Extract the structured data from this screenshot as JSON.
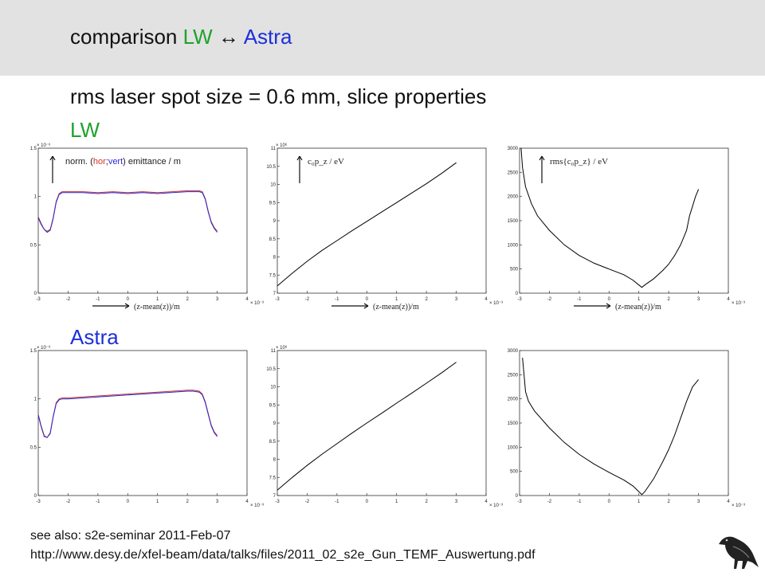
{
  "header": {
    "title_prefix": "comparison ",
    "title_lw": "LW",
    "title_arrow": " ↔ ",
    "title_astra": "Astra"
  },
  "subtitle": "rms laser spot size = 0.6 mm, slice properties",
  "sections": {
    "lw": "LW",
    "astra": "Astra"
  },
  "colors": {
    "lw": "#1fa22a",
    "astra": "#1d2fd8",
    "hor": "#d0332b",
    "vert": "#2a2ad6"
  },
  "footer": {
    "line1": "see also: s2e-seminar 2011-Feb-07",
    "line2": "http://www.desy.de/xfel-beam/data/talks/files/2011_02_s2e_Gun_TEMF_Auswertung.pdf"
  },
  "logo_icon": "crow-icon",
  "chart_data": [
    {
      "id": "lw-emittance",
      "type": "line",
      "ylabel_parts": [
        "norm. (",
        "hor",
        ";",
        "vert",
        ") emittance / m"
      ],
      "xlabel": "(z-mean(z))/m",
      "x_exponent": "× 10⁻³",
      "y_exponent": "× 10⁻⁶",
      "xlim": [
        -3,
        4
      ],
      "ylim": [
        0,
        1.5
      ],
      "xticks": [
        -3,
        -2,
        -1,
        0,
        1,
        2,
        3,
        4
      ],
      "xtick_labels": [
        "-3",
        "-2",
        "-1",
        "0",
        "1",
        "2",
        "3",
        "4"
      ],
      "yticks": [
        0,
        0.5,
        1,
        1.5
      ],
      "ytick_labels": [
        "0",
        "0.5",
        "1",
        "1.5"
      ],
      "series": [
        {
          "color": "#d0332b",
          "x": [
            -3.0,
            -2.9,
            -2.8,
            -2.7,
            -2.6,
            -2.5,
            -2.4,
            -2.3,
            -2.2,
            -2.1,
            -2.0,
            -1.5,
            -1.0,
            -0.5,
            0.0,
            0.5,
            1.0,
            1.5,
            2.0,
            2.2,
            2.4,
            2.5,
            2.6,
            2.7,
            2.8,
            2.9,
            3.0
          ],
          "y": [
            0.79,
            0.72,
            0.66,
            0.64,
            0.66,
            0.78,
            0.95,
            1.03,
            1.05,
            1.05,
            1.05,
            1.05,
            1.04,
            1.05,
            1.04,
            1.05,
            1.04,
            1.05,
            1.06,
            1.06,
            1.06,
            1.05,
            0.98,
            0.85,
            0.74,
            0.68,
            0.64
          ]
        },
        {
          "color": "#2a2ad6",
          "x": [
            -3.0,
            -2.9,
            -2.8,
            -2.7,
            -2.6,
            -2.5,
            -2.4,
            -2.3,
            -2.2,
            -2.1,
            -2.0,
            -1.5,
            -1.0,
            -0.5,
            0.0,
            0.5,
            1.0,
            1.5,
            2.0,
            2.2,
            2.4,
            2.5,
            2.6,
            2.7,
            2.8,
            2.9,
            3.0
          ],
          "y": [
            0.78,
            0.71,
            0.66,
            0.63,
            0.65,
            0.77,
            0.94,
            1.02,
            1.04,
            1.04,
            1.04,
            1.04,
            1.03,
            1.04,
            1.03,
            1.04,
            1.03,
            1.04,
            1.05,
            1.05,
            1.05,
            1.04,
            0.97,
            0.84,
            0.73,
            0.67,
            0.63
          ]
        }
      ]
    },
    {
      "id": "lw-momentum",
      "type": "line",
      "ylabel": "c₀p_z / eV",
      "xlabel": "(z-mean(z))/m",
      "x_exponent": "× 10⁻³",
      "y_exponent": "× 10⁶",
      "xlim": [
        -3,
        4
      ],
      "ylim": [
        7,
        11
      ],
      "xticks": [
        -3,
        -2,
        -1,
        0,
        1,
        2,
        3,
        4
      ],
      "xtick_labels": [
        "-3",
        "-2",
        "-1",
        "0",
        "1",
        "2",
        "3",
        "4"
      ],
      "yticks": [
        7,
        7.5,
        8,
        8.5,
        9,
        9.5,
        10,
        10.5,
        11
      ],
      "ytick_labels": [
        "7",
        "7.5",
        "8",
        "8.5",
        "9",
        "9.5",
        "10",
        "10.5",
        "11"
      ],
      "series": [
        {
          "color": "#000000",
          "x": [
            -3.0,
            -2.5,
            -2.0,
            -1.5,
            -1.0,
            -0.5,
            0.0,
            0.5,
            1.0,
            1.5,
            2.0,
            2.5,
            3.0
          ],
          "y": [
            7.2,
            7.55,
            7.88,
            8.18,
            8.45,
            8.72,
            8.98,
            9.24,
            9.5,
            9.76,
            10.02,
            10.3,
            10.6
          ]
        }
      ]
    },
    {
      "id": "lw-energy-spread",
      "type": "line",
      "ylabel": "rms{c₀p_z} / eV",
      "xlabel": "(z-mean(z))/m",
      "x_exponent": "× 10⁻³",
      "xlim": [
        -3,
        4
      ],
      "ylim": [
        0,
        3000
      ],
      "xticks": [
        -3,
        -2,
        -1,
        0,
        1,
        2,
        3,
        4
      ],
      "xtick_labels": [
        "-3",
        "-2",
        "-1",
        "0",
        "1",
        "2",
        "3",
        "4"
      ],
      "yticks": [
        0,
        500,
        1000,
        1500,
        2000,
        2500,
        3000
      ],
      "ytick_labels": [
        "0",
        "500",
        "1000",
        "1500",
        "2000",
        "2500",
        "3000"
      ],
      "series": [
        {
          "color": "#000000",
          "x": [
            -2.95,
            -2.9,
            -2.8,
            -2.6,
            -2.4,
            -2.0,
            -1.5,
            -1.0,
            -0.5,
            0.0,
            0.5,
            0.8,
            1.0,
            1.1,
            1.2,
            1.5,
            1.8,
            2.0,
            2.2,
            2.4,
            2.6,
            2.7,
            2.8,
            2.9,
            3.0
          ],
          "y": [
            3000,
            2600,
            2200,
            1850,
            1600,
            1300,
            1000,
            780,
            620,
            500,
            380,
            270,
            170,
            120,
            170,
            300,
            470,
            600,
            780,
            1000,
            1300,
            1600,
            1800,
            2000,
            2150
          ]
        }
      ]
    },
    {
      "id": "astra-emittance",
      "type": "line",
      "x_exponent": "× 10⁻³",
      "y_exponent": "× 10⁻⁶",
      "xlim": [
        -3,
        4
      ],
      "ylim": [
        0,
        1.5
      ],
      "xticks": [
        -3,
        -2,
        -1,
        0,
        1,
        2,
        3,
        4
      ],
      "xtick_labels": [
        "-3",
        "-2",
        "-1",
        "0",
        "1",
        "2",
        "3",
        "4"
      ],
      "yticks": [
        0,
        0.5,
        1,
        1.5
      ],
      "ytick_labels": [
        "0",
        "0.5",
        "1",
        "1.5"
      ],
      "series": [
        {
          "color": "#d0332b",
          "x": [
            -3.0,
            -2.9,
            -2.8,
            -2.7,
            -2.6,
            -2.5,
            -2.4,
            -2.3,
            -2.2,
            -2.0,
            -1.5,
            -1.0,
            -0.5,
            0.0,
            0.5,
            1.0,
            1.5,
            2.0,
            2.2,
            2.4,
            2.5,
            2.6,
            2.7,
            2.8,
            2.9,
            3.0
          ],
          "y": [
            0.84,
            0.72,
            0.62,
            0.6,
            0.65,
            0.82,
            0.96,
            1.0,
            1.01,
            1.01,
            1.02,
            1.03,
            1.04,
            1.05,
            1.06,
            1.07,
            1.08,
            1.09,
            1.09,
            1.08,
            1.05,
            0.97,
            0.85,
            0.73,
            0.66,
            0.62
          ]
        },
        {
          "color": "#2a2ad6",
          "x": [
            -3.0,
            -2.9,
            -2.8,
            -2.7,
            -2.6,
            -2.5,
            -2.4,
            -2.3,
            -2.2,
            -2.0,
            -1.5,
            -1.0,
            -0.5,
            0.0,
            0.5,
            1.0,
            1.5,
            2.0,
            2.2,
            2.4,
            2.5,
            2.6,
            2.7,
            2.8,
            2.9,
            3.0
          ],
          "y": [
            0.83,
            0.71,
            0.61,
            0.6,
            0.64,
            0.81,
            0.95,
            0.99,
            1.0,
            1.0,
            1.01,
            1.02,
            1.03,
            1.04,
            1.05,
            1.06,
            1.07,
            1.08,
            1.08,
            1.07,
            1.04,
            0.96,
            0.84,
            0.72,
            0.65,
            0.61
          ]
        }
      ]
    },
    {
      "id": "astra-momentum",
      "type": "line",
      "x_exponent": "× 10⁻³",
      "y_exponent": "× 10⁶",
      "xlim": [
        -3,
        4
      ],
      "ylim": [
        7,
        11
      ],
      "xticks": [
        -3,
        -2,
        -1,
        0,
        1,
        2,
        3,
        4
      ],
      "xtick_labels": [
        "-3",
        "-2",
        "-1",
        "0",
        "1",
        "2",
        "3",
        "4"
      ],
      "yticks": [
        7,
        7.5,
        8,
        8.5,
        9,
        9.5,
        10,
        10.5,
        11
      ],
      "ytick_labels": [
        "7",
        "7.5",
        "8",
        "8.5",
        "9",
        "9.5",
        "10",
        "10.5",
        "11"
      ],
      "series": [
        {
          "color": "#000000",
          "x": [
            -3.0,
            -2.5,
            -2.0,
            -1.5,
            -1.0,
            -0.5,
            0.0,
            0.5,
            1.0,
            1.5,
            2.0,
            2.5,
            3.0
          ],
          "y": [
            7.15,
            7.5,
            7.83,
            8.14,
            8.43,
            8.72,
            9.0,
            9.27,
            9.55,
            9.82,
            10.1,
            10.38,
            10.68
          ]
        }
      ]
    },
    {
      "id": "astra-energy-spread",
      "type": "line",
      "x_exponent": "× 10⁻³",
      "xlim": [
        -3,
        4
      ],
      "ylim": [
        0,
        3000
      ],
      "xticks": [
        -3,
        -2,
        -1,
        0,
        1,
        2,
        3,
        4
      ],
      "xtick_labels": [
        "-3",
        "-2",
        "-1",
        "0",
        "1",
        "2",
        "3",
        "4"
      ],
      "yticks": [
        0,
        500,
        1000,
        1500,
        2000,
        2500,
        3000
      ],
      "ytick_labels": [
        "0",
        "500",
        "1000",
        "1500",
        "2000",
        "2500",
        "3000"
      ],
      "series": [
        {
          "color": "#000000",
          "x": [
            -2.9,
            -2.85,
            -2.8,
            -2.7,
            -2.5,
            -2.0,
            -1.5,
            -1.0,
            -0.5,
            0.0,
            0.5,
            0.8,
            1.0,
            1.1,
            1.2,
            1.5,
            1.8,
            2.0,
            2.2,
            2.4,
            2.6,
            2.8,
            3.0
          ],
          "y": [
            2850,
            2500,
            2150,
            1950,
            1750,
            1400,
            1100,
            850,
            650,
            480,
            320,
            200,
            80,
            20,
            80,
            350,
            700,
            950,
            1250,
            1600,
            1950,
            2250,
            2400
          ]
        }
      ]
    }
  ]
}
